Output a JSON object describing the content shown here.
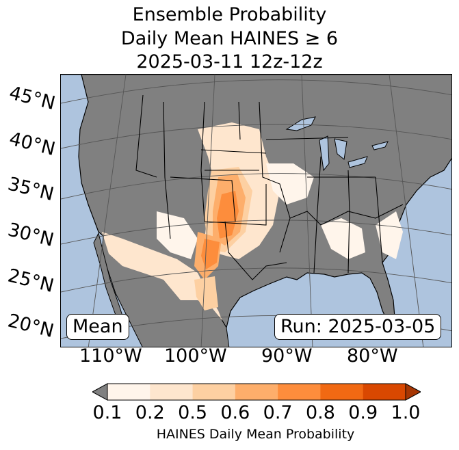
{
  "title": {
    "line1": "Ensemble Probability",
    "line2": "Daily Mean HAINES ≥ 6",
    "line3": "2025-03-11 12z-12z"
  },
  "latitude_labels": [
    "45°N",
    "40°N",
    "35°N",
    "30°N",
    "25°N",
    "20°N"
  ],
  "longitude_labels": [
    "110°W",
    "100°W",
    "90°W",
    "80°W"
  ],
  "mean_label": "Mean",
  "run_label": "Run: 2025-03-05",
  "colorbar": {
    "label": "HAINES Daily Mean Probability",
    "ticks": [
      "0.1",
      "0.2",
      "0.5",
      "0.6",
      "0.7",
      "0.8",
      "0.9",
      "1.0"
    ],
    "colors": [
      "#fff5eb",
      "#fee6ce",
      "#fdd0a2",
      "#fdae6b",
      "#fd8d3c",
      "#f16913",
      "#d94801",
      "#a63603"
    ],
    "under_color": "#808080"
  },
  "map_colors": {
    "ocean": "#aec4de",
    "land": "#808080",
    "border": "#000000",
    "grid": "#555555"
  }
}
